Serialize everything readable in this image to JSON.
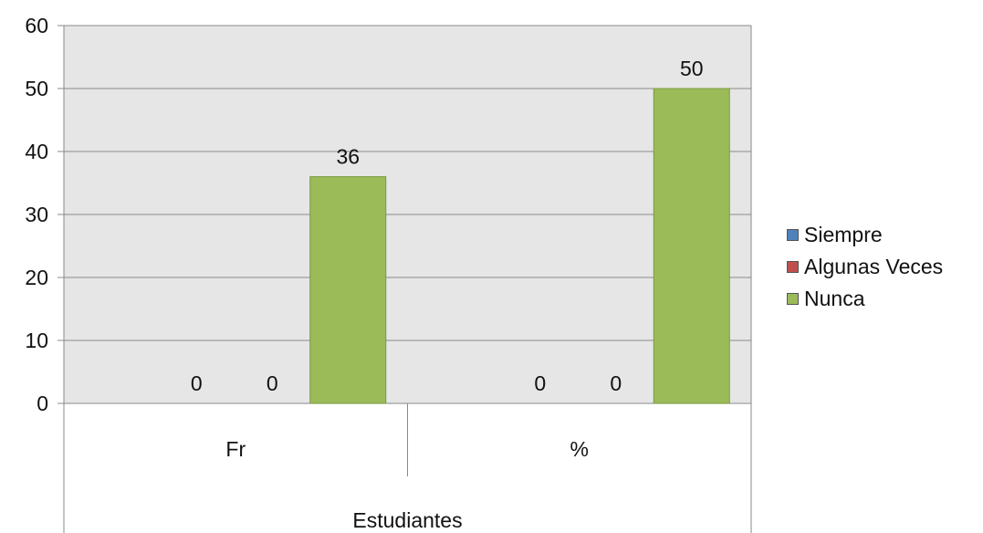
{
  "chart_data": {
    "type": "bar",
    "categories": [
      "Fr",
      "%"
    ],
    "group_label": "Estudiantes",
    "series": [
      {
        "name": "Siempre",
        "color": "#4f81bd",
        "values": [
          0,
          0
        ]
      },
      {
        "name": "Algunas Veces",
        "color": "#c0504d",
        "values": [
          0,
          0
        ]
      },
      {
        "name": "Nunca",
        "color": "#9bbb59",
        "values": [
          36,
          50
        ]
      }
    ],
    "data_labels": [
      [
        "0",
        "0",
        "36"
      ],
      [
        "0",
        "0",
        "50"
      ]
    ],
    "ylim": [
      0,
      60
    ],
    "yticks": [
      0,
      10,
      20,
      30,
      40,
      50,
      60
    ],
    "grid": true,
    "plot_background": "#e6e6e6",
    "legend_position": "right"
  }
}
